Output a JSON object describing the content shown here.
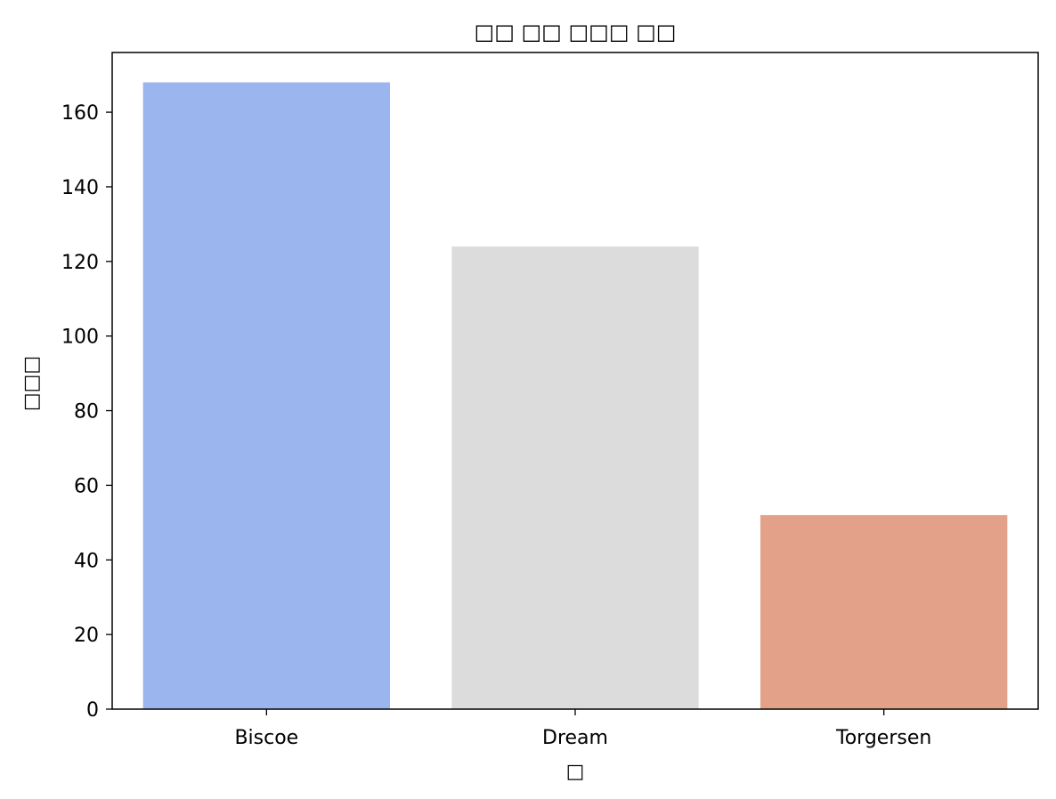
{
  "chart_data": {
    "type": "bar",
    "title": "□□ □□ □□□ □□",
    "xlabel": "□",
    "ylabel": "□□□",
    "categories": [
      "Biscoe",
      "Dream",
      "Torgersen"
    ],
    "values": [
      168,
      124,
      52
    ],
    "colors": [
      "#9bb5ef",
      "#dcdcdc",
      "#e3a18a"
    ],
    "ylim": [
      0,
      176
    ],
    "yticks": [
      0,
      20,
      40,
      60,
      80,
      100,
      120,
      140,
      160
    ],
    "grid": false,
    "legend": "none"
  }
}
